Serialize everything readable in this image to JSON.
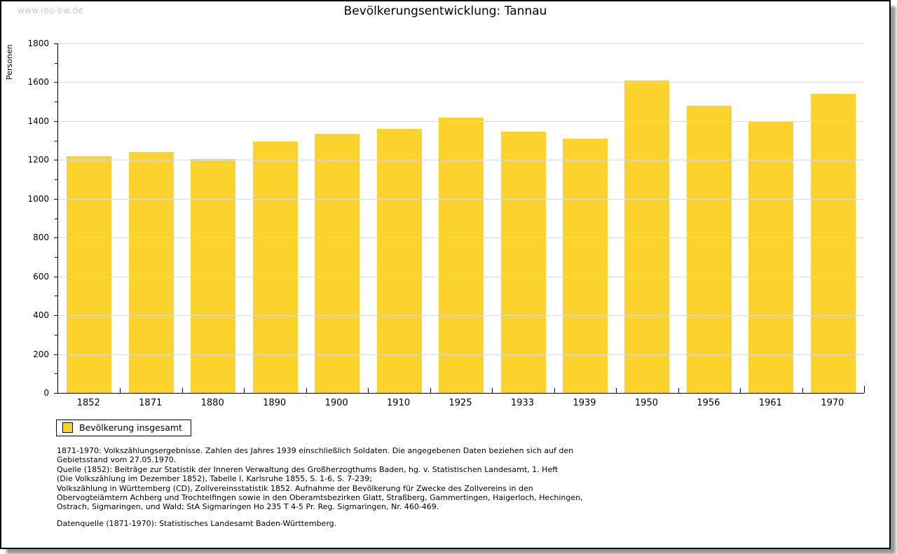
{
  "page": {
    "watermark": "www.leo-bw.de"
  },
  "chart_data": {
    "type": "bar",
    "title": "Bevölkerungsentwicklung: Tannau",
    "ylabel": "Personen",
    "xlabel": "",
    "categories": [
      "1852",
      "1871",
      "1880",
      "1890",
      "1900",
      "1910",
      "1925",
      "1933",
      "1939",
      "1950",
      "1956",
      "1961",
      "1970"
    ],
    "values": [
      1220,
      1240,
      1205,
      1296,
      1335,
      1360,
      1416,
      1345,
      1310,
      1608,
      1480,
      1400,
      1542
    ],
    "ylim": [
      0,
      1800
    ],
    "ytick_step": 200,
    "ytick_minor_step": 100,
    "grid": true,
    "bar_color": "#FBD32C",
    "legend_position": "bottom-left",
    "legend": [
      {
        "label": "Bevölkerung insgesamt",
        "color": "#FBD32C"
      }
    ]
  },
  "footer": {
    "lines": [
      "1871-1970: Volkszählungsergebnisse. Zahlen des Jahres 1939 einschließlich Soldaten. Die angegebenen Daten beziehen sich auf den",
      "Gebietsstand vom 27.05.1970.",
      "Quelle (1852): Beiträge zur Statistik der Inneren Verwaltung des Großherzogthums Baden, hg. v. Statistischen Landesamt, 1. Heft",
      "(Die Volkszählung im Dezember 1852), Tabelle I, Karlsruhe 1855, S. 1-6, S. 7-239;",
      "Volkszählung in Württemberg (CD), Zollvereinsstatistik 1852. Aufnahme der Bevölkerung für Zwecke des Zollvereins in den",
      "Obervogteiämtern Achberg und Trochtelfingen sowie in den Oberamtsbezirken Glatt, Straßberg, Gammertingen, Haigerloch, Hechingen,",
      "Ostrach, Sigmaringen, und Wald; StA Sigmaringen Ho 235 T 4-5 Pr. Reg. Sigmaringen, Nr. 460-469."
    ],
    "datasource": "Datenquelle (1871-1970): Statistisches Landesamt Baden-Württemberg."
  }
}
